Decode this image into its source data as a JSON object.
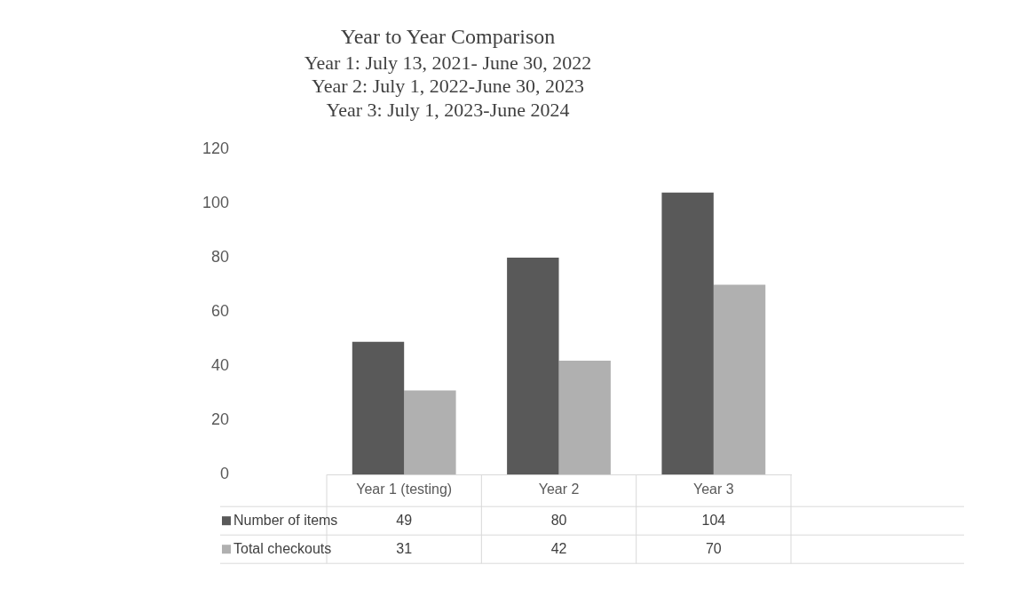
{
  "chart_data": {
    "type": "bar",
    "title": "Year to Year Comparison",
    "subtitle": "Year 1: July 13, 2021- June 30, 2022\nYear 2: July 1, 2022-June 30, 2023\nYear 3: July 1, 2023-June 2024",
    "categories": [
      "Year 1 (testing)",
      "Year 2",
      "Year 3"
    ],
    "series": [
      {
        "name": "Number of items",
        "color": "#595959",
        "values": [
          49,
          80,
          104
        ]
      },
      {
        "name": "Total checkouts",
        "color": "#b0b0b0",
        "values": [
          31,
          42,
          70
        ]
      }
    ],
    "ylim": [
      0,
      120
    ],
    "yticks": [
      0,
      20,
      40,
      60,
      80,
      100,
      120
    ],
    "grid": false,
    "legend": "bottom",
    "data_labels": true
  }
}
